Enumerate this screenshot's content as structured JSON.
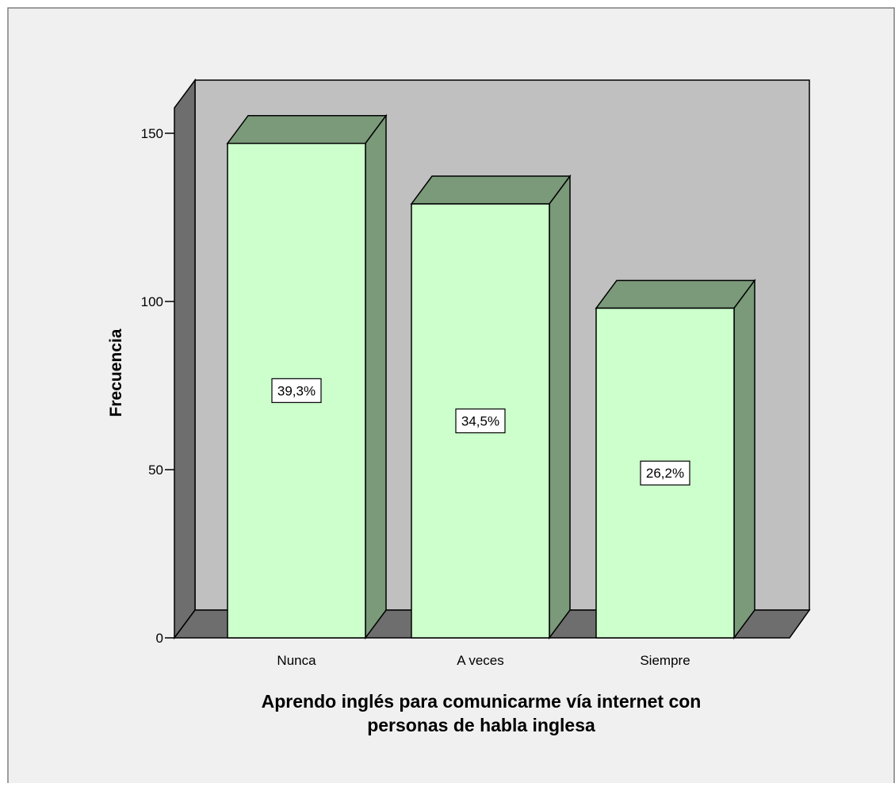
{
  "chart_data": {
    "type": "bar",
    "categories": [
      "Nunca",
      "A veces",
      "Siempre"
    ],
    "values": [
      147,
      129,
      98
    ],
    "data_labels": [
      "39,3%",
      "34,5%",
      "26,2%"
    ],
    "xlabel_lines": [
      "Aprendo inglés para comunicarme vía internet con",
      "personas de habla inglesa"
    ],
    "ylabel": "Frecuencia",
    "ylim": [
      0,
      150
    ],
    "yticks": [
      0,
      50,
      100,
      150
    ],
    "ytick_labels": [
      "0",
      "50",
      "100",
      "150"
    ],
    "legend": "none",
    "grid": false,
    "style": "3d",
    "colors": {
      "page_background": "#f0f0f0",
      "back_wall": "#c0c0c0",
      "side_wall": "#6e6e6e",
      "floor": "#6e6e6e",
      "bar_front": "#ccffcc",
      "bar_side": "#7a9a7a",
      "bar_top": "#7a9a7a",
      "outline": "#000000",
      "label_box": "#ffffff"
    }
  }
}
